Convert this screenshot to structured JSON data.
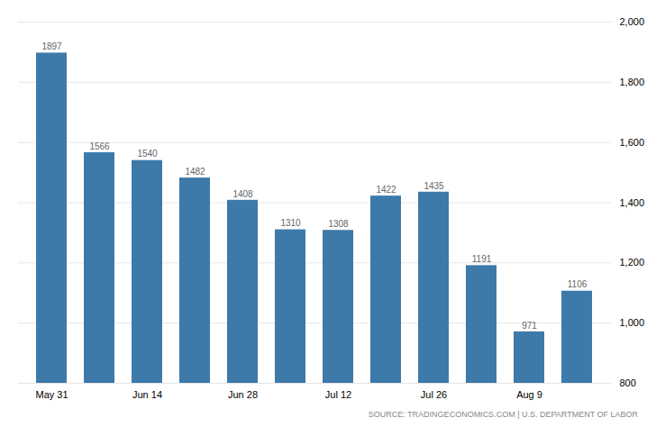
{
  "chart_data": {
    "type": "bar",
    "categories": [
      "May 31",
      null,
      "Jun 14",
      null,
      "Jun 28",
      null,
      "Jul 12",
      null,
      "Jul 26",
      null,
      "Aug 9",
      null
    ],
    "values": [
      1897,
      1566,
      1540,
      1482,
      1408,
      1310,
      1308,
      1422,
      1435,
      1191,
      971,
      1106
    ],
    "color": "#3d7aaa",
    "ylim": [
      800,
      2000
    ],
    "yticks": [
      800,
      1000,
      1200,
      1400,
      1600,
      1800,
      2000
    ],
    "grid": true,
    "data_labels": true,
    "annotations": [
      "SOURCE: TRADINGECONOMICS.COM | U.S. DEPARTMENT OF LABOR"
    ]
  }
}
